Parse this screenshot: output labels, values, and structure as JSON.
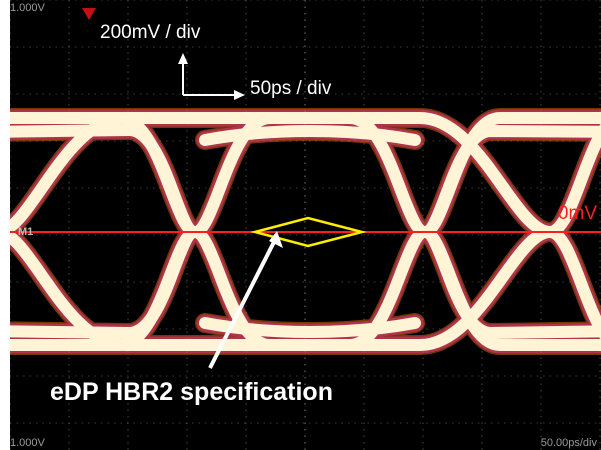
{
  "scope": {
    "top_voltage_readout": "1.000V",
    "bottom_voltage_readout": "1.000V",
    "time_readout": "50.00ps/div",
    "marker_label": "M1",
    "vertical_scale": "200mV / div",
    "horizontal_scale": "50ps / div",
    "zero_level_label": "0mV",
    "spec_label": "eDP HBR2 specification"
  },
  "colors": {
    "background": "#000000",
    "trace": "#fff5d6",
    "trace_glow": "#ff7a00",
    "trace_noise": "#e0308a",
    "zero_line": "#ff1e1e",
    "mask": "#ffee00",
    "grid": "#777777",
    "readout": "#9a9a9a"
  },
  "icons": [
    "trigger-marker-icon",
    "axis-arrow-icon",
    "pointer-arrow-icon"
  ]
}
